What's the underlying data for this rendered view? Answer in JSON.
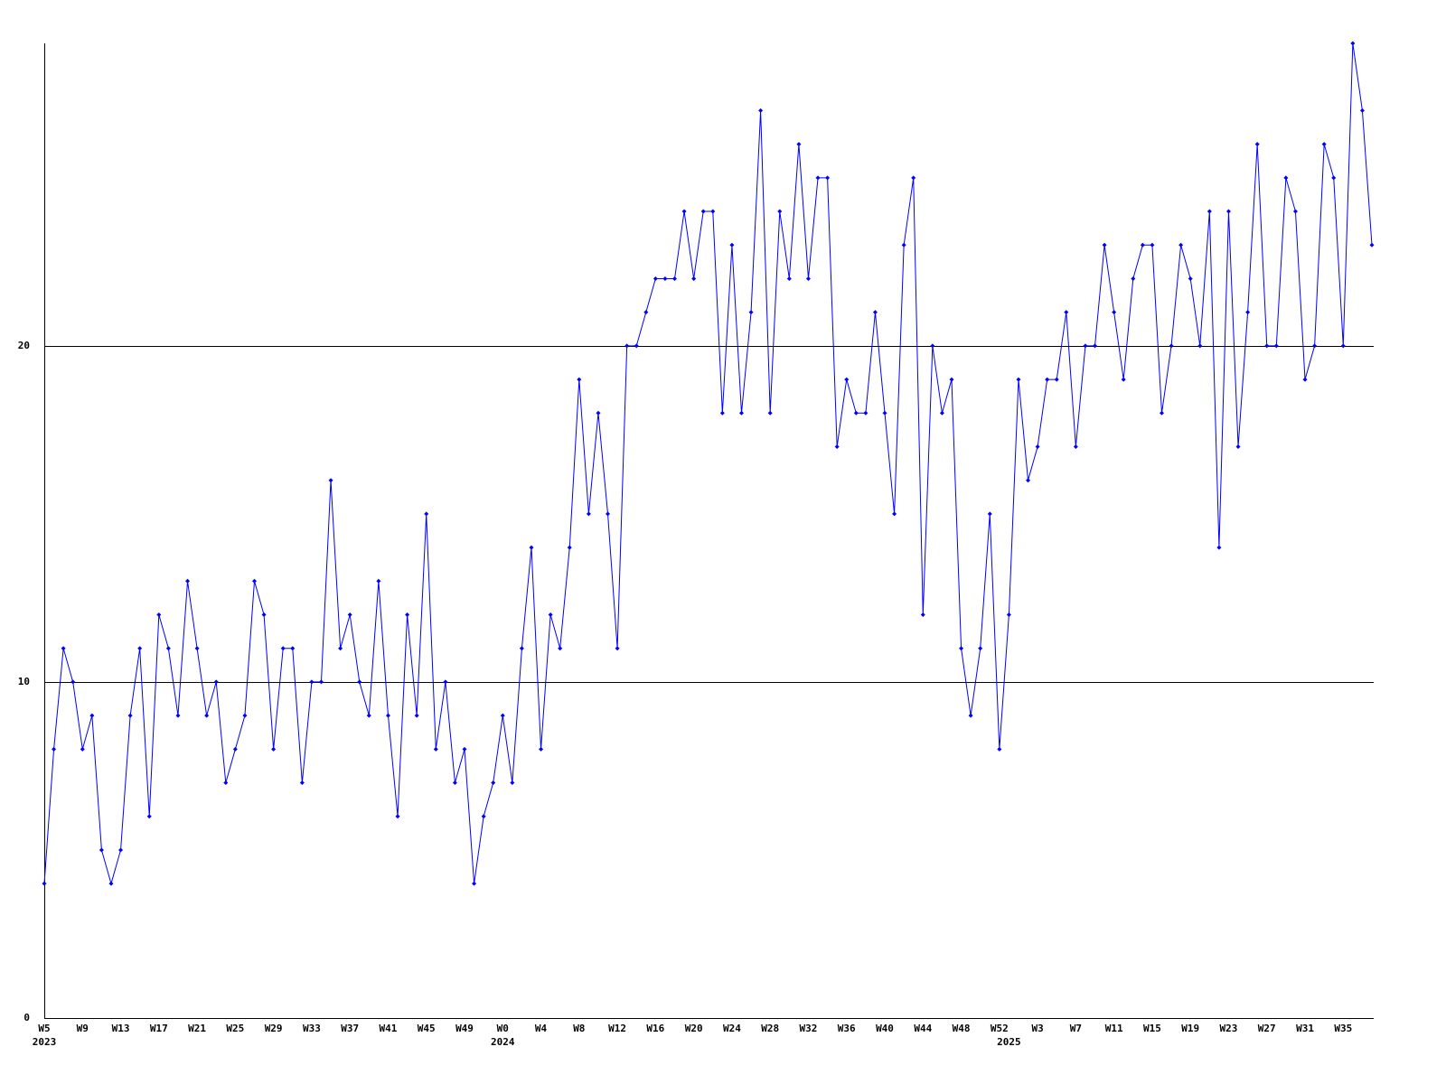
{
  "chart_data": {
    "type": "line",
    "categories": [
      "W5",
      null,
      null,
      null,
      "W9",
      null,
      null,
      null,
      "W13",
      null,
      null,
      null,
      "W17",
      null,
      null,
      null,
      "W21",
      null,
      null,
      null,
      "W25",
      null,
      null,
      null,
      "W29",
      null,
      null,
      null,
      "W33",
      null,
      null,
      null,
      "W37",
      null,
      null,
      null,
      "W41",
      null,
      null,
      null,
      "W45",
      null,
      null,
      null,
      "W49",
      null,
      null,
      null,
      "W0",
      null,
      null,
      null,
      "W4",
      null,
      null,
      null,
      "W8",
      null,
      null,
      null,
      "W12",
      null,
      null,
      null,
      "W16",
      null,
      null,
      null,
      "W20",
      null,
      null,
      null,
      "W24",
      null,
      null,
      null,
      "W28",
      null,
      null,
      null,
      "W32",
      null,
      null,
      null,
      "W36",
      null,
      null,
      null,
      "W40",
      null,
      null,
      null,
      "W44",
      null,
      null,
      null,
      "W48",
      null,
      null,
      null,
      "W52",
      null,
      null,
      null,
      "W3",
      null,
      null,
      null,
      "W7",
      null,
      null,
      null,
      "W11",
      null,
      null,
      null,
      "W15",
      null,
      null,
      null,
      "W19",
      null,
      null,
      null,
      "W23",
      null,
      null,
      null,
      "W27",
      null,
      null,
      null,
      "W31",
      null,
      null,
      null,
      "W35",
      null,
      null,
      null
    ],
    "years": [
      "2023",
      null,
      null,
      null,
      null,
      null,
      null,
      null,
      null,
      null,
      null,
      null,
      null,
      null,
      null,
      null,
      null,
      null,
      null,
      null,
      null,
      null,
      null,
      null,
      null,
      null,
      null,
      null,
      null,
      null,
      null,
      null,
      null,
      null,
      null,
      null,
      null,
      null,
      null,
      null,
      null,
      null,
      null,
      null,
      null,
      null,
      null,
      null,
      "2024",
      null,
      null,
      null,
      null,
      null,
      null,
      null,
      null,
      null,
      null,
      null,
      null,
      null,
      null,
      null,
      null,
      null,
      null,
      null,
      null,
      null,
      null,
      null,
      null,
      null,
      null,
      null,
      null,
      null,
      null,
      null,
      null,
      null,
      null,
      null,
      null,
      null,
      null,
      null,
      null,
      null,
      null,
      null,
      null,
      null,
      null,
      null,
      null,
      null,
      null,
      null,
      null,
      "2025",
      null,
      null,
      null,
      null,
      null,
      null,
      null,
      null,
      null,
      null,
      null,
      null,
      null,
      null,
      null,
      null,
      null,
      null,
      null,
      null,
      null,
      null,
      null,
      null,
      null,
      null,
      null,
      null,
      null,
      null,
      null,
      null,
      null,
      null,
      null,
      null,
      null,
      null
    ],
    "series": [
      {
        "color": "#0000ff",
        "values": [
          4,
          8,
          11,
          10,
          8,
          9,
          5,
          4,
          5,
          9,
          11,
          6,
          12,
          11,
          9,
          13,
          11,
          9,
          10,
          7,
          8,
          9,
          13,
          12,
          8,
          11,
          11,
          7,
          10,
          10,
          16,
          11,
          12,
          10,
          9,
          13,
          9,
          6,
          12,
          9,
          15,
          8,
          10,
          7,
          8,
          4,
          6,
          7,
          9,
          7,
          11,
          14,
          8,
          12,
          11,
          14,
          19,
          15,
          18,
          15,
          11,
          20,
          20,
          21,
          22,
          22,
          22,
          24,
          22,
          24,
          24,
          18,
          23,
          18,
          21,
          27,
          18,
          24,
          22,
          26,
          22,
          25,
          25,
          17,
          19,
          18,
          18,
          21,
          18,
          15,
          23,
          25,
          12,
          20,
          18,
          19,
          11,
          9,
          11,
          15,
          8,
          12,
          19,
          16,
          17,
          19,
          19,
          21,
          17,
          20,
          20,
          23,
          21,
          19,
          22,
          23,
          23,
          18,
          20,
          23,
          22,
          20,
          24,
          14,
          24,
          17,
          21,
          26,
          20,
          20,
          25,
          24,
          19,
          20,
          26,
          25,
          20,
          29,
          27,
          23
        ]
      }
    ],
    "ylim": [
      0,
      29
    ],
    "yticks": [
      0,
      10,
      20
    ],
    "grid": true
  }
}
